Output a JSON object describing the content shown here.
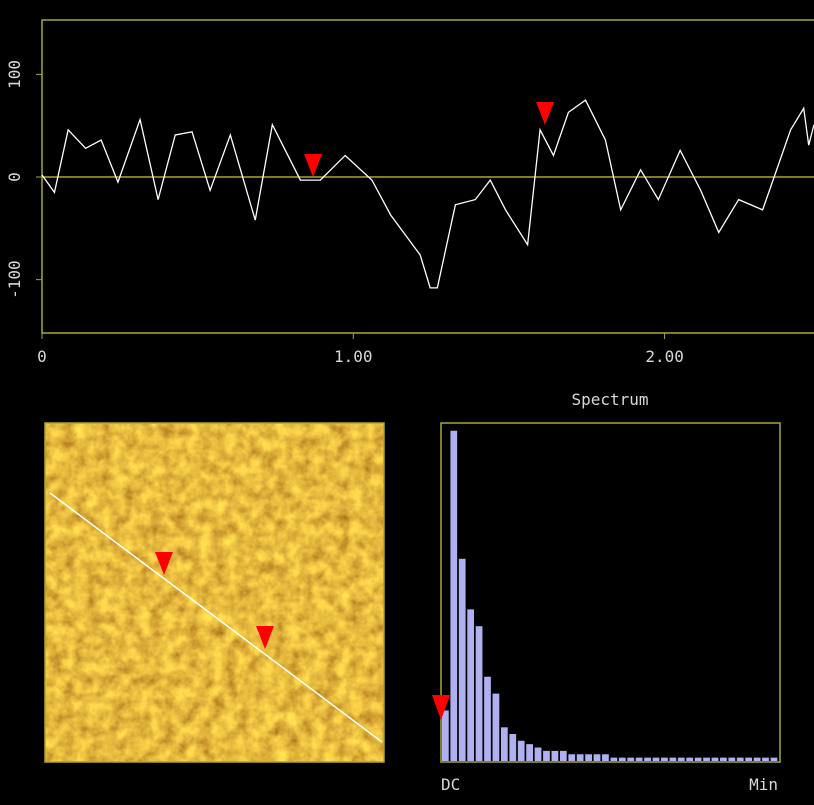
{
  "profile": {
    "type": "line",
    "color": "#ffffff",
    "x": [
      0,
      0.04,
      0.084,
      0.14,
      0.19,
      0.244,
      0.315,
      0.373,
      0.428,
      0.482,
      0.54,
      0.605,
      0.685,
      0.74,
      0.83,
      0.894,
      0.974,
      1.06,
      1.12,
      1.215,
      1.247,
      1.27,
      1.328,
      1.392,
      1.44,
      1.489,
      1.56,
      1.6,
      1.643,
      1.691,
      1.746,
      1.81,
      1.859,
      1.923,
      1.98,
      2.05,
      2.116,
      2.174,
      2.238,
      2.315,
      2.405,
      2.447,
      2.463,
      2.48
    ],
    "values": [
      2,
      -15,
      46,
      28,
      36,
      -5,
      56,
      -22,
      41,
      44,
      -13,
      41,
      -42,
      51,
      -3,
      -3,
      21,
      -3,
      -37,
      -76,
      -108,
      -108,
      -27,
      -22,
      -3,
      -32,
      -66,
      46,
      21,
      63,
      75,
      36,
      -32,
      7,
      -22,
      26,
      -13,
      -54,
      -22,
      -32,
      46,
      67,
      31,
      51
    ],
    "xlim": [
      0,
      2.48
    ],
    "ylim": [
      -152,
      153
    ],
    "xticks": [
      0,
      {
        "value": 1,
        "label": "1.00"
      },
      {
        "value": 2,
        "label": "2.00"
      }
    ],
    "yticks": [
      100,
      0,
      -100
    ]
  },
  "spectrum": {
    "type": "bar",
    "title": "Spectrum",
    "color": "#b0b0f0",
    "values": [
      15,
      98,
      60,
      45,
      40,
      25,
      20,
      10,
      8,
      6,
      5,
      4,
      3,
      3,
      3,
      2,
      2,
      2,
      2,
      2,
      1,
      1,
      1,
      1,
      1,
      1,
      1,
      1,
      1,
      1,
      1,
      1,
      1,
      1,
      1,
      1,
      1,
      1,
      1,
      1
    ],
    "ylim": [
      0,
      100
    ],
    "start_label": "DC",
    "end_label": "Min"
  }
}
